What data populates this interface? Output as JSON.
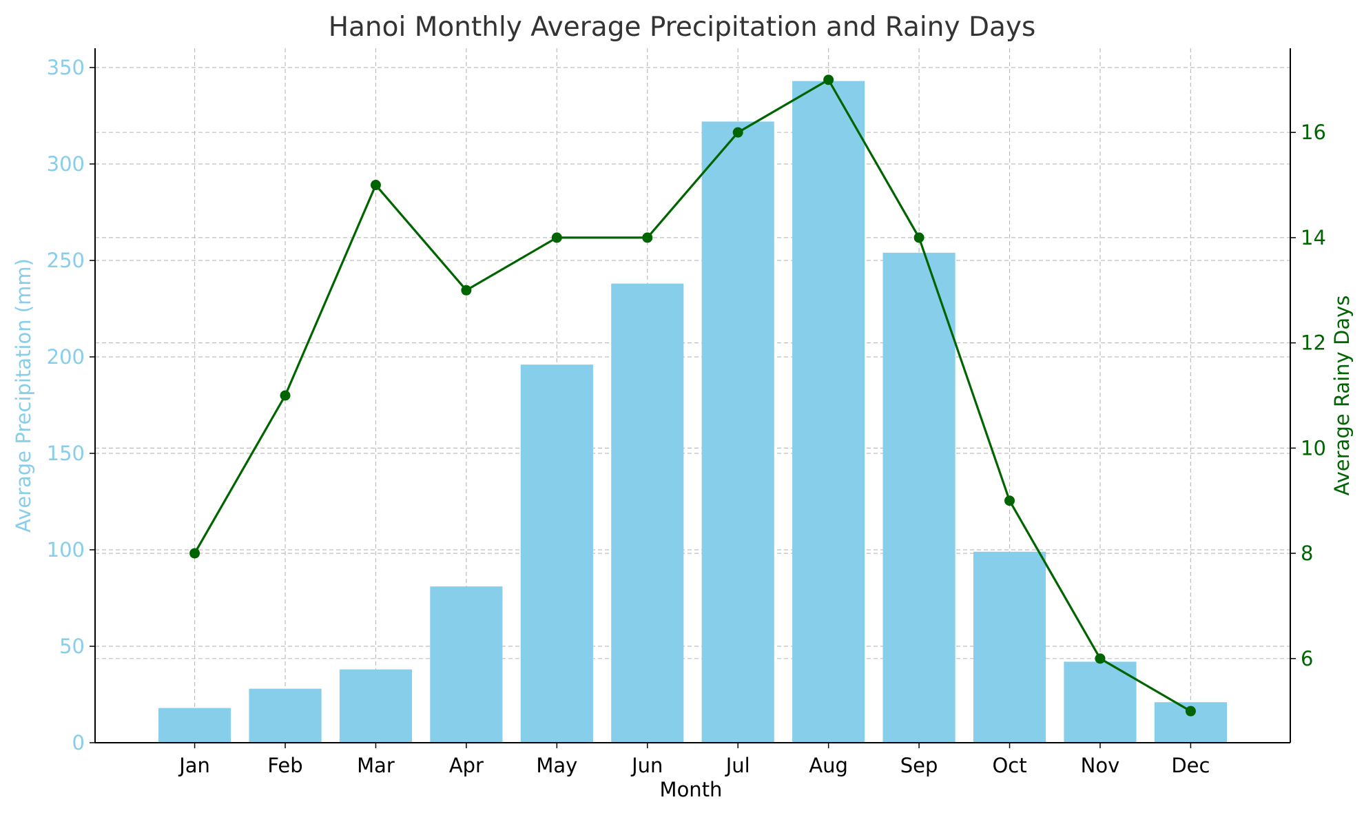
{
  "chart_data": {
    "type": "bar",
    "title": "Hanoi Monthly Average Precipitation and Rainy Days",
    "xlabel": "Month",
    "ylabel": "Average Precipitation (mm)",
    "y2label": "Average Rainy Days",
    "categories": [
      "Jan",
      "Feb",
      "Mar",
      "Apr",
      "May",
      "Jun",
      "Jul",
      "Aug",
      "Sep",
      "Oct",
      "Nov",
      "Dec"
    ],
    "series": [
      {
        "type": "bar",
        "axis": "left",
        "color": "#87ceeb",
        "values": [
          18,
          28,
          38,
          81,
          196,
          238,
          322,
          343,
          254,
          99,
          42,
          21
        ]
      },
      {
        "type": "line",
        "axis": "right",
        "color": "#006400",
        "marker": "circle",
        "values": [
          8,
          11,
          15,
          13,
          14,
          14,
          16,
          17,
          14,
          9,
          6,
          5
        ]
      }
    ],
    "ylim": [
      0,
      360
    ],
    "yticks": [
      0,
      50,
      100,
      150,
      200,
      250,
      300,
      350
    ],
    "y2lim": [
      4.4,
      17.6
    ],
    "y2ticks": [
      6,
      8,
      10,
      12,
      14,
      16
    ],
    "grid": true,
    "colors": {
      "bars": "#87ceeb",
      "line": "#006400",
      "left_axis_text": "#87ceeb",
      "right_axis_text": "#006400",
      "title": "#333333",
      "axes": "#000000"
    }
  }
}
